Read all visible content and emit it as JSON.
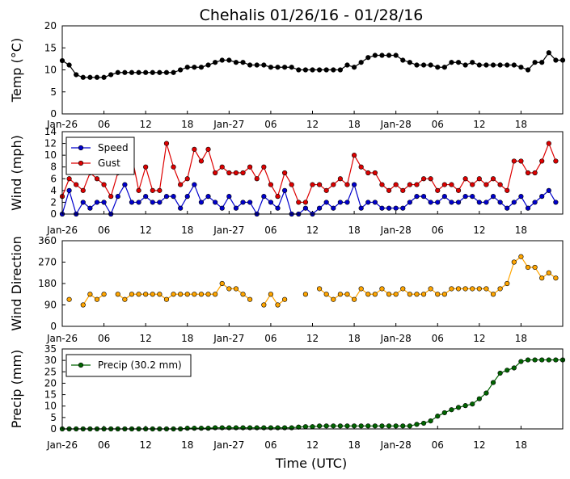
{
  "title": "Chehalis 01/26/16 - 01/28/16",
  "xlabel": "Time (UTC)",
  "x_tick_labels": [
    "Jan-26",
    "06",
    "12",
    "18",
    "Jan-27",
    "06",
    "12",
    "18",
    "Jan-28",
    "06",
    "12",
    "18"
  ],
  "colors": {
    "temp": "#000000",
    "speed": "#0000cc",
    "gust": "#dd0000",
    "direction": "#ffa500",
    "precip": "#006400"
  },
  "chart_data": [
    {
      "type": "line",
      "ylabel": "Temp ($^{\\circ}$C)",
      "ylabel_display": "Temp (°C)",
      "ylim": [
        0,
        20
      ],
      "yticks": [
        0,
        5,
        10,
        15,
        20
      ],
      "xlim": [
        0,
        72
      ],
      "x_unit": "hours since Jan-26 00:00 UTC",
      "series": [
        {
          "key": "temp",
          "values": [
            12.1,
            11.1,
            8.9,
            8.3,
            8.3,
            8.3,
            8.3,
            8.9,
            9.4,
            9.4,
            9.4,
            9.4,
            9.4,
            9.4,
            9.4,
            9.4,
            9.4,
            10.0,
            10.6,
            10.6,
            10.6,
            11.1,
            11.7,
            12.2,
            12.2,
            11.7,
            11.7,
            11.1,
            11.1,
            11.1,
            10.6,
            10.6,
            10.6,
            10.6,
            10.0,
            10.0,
            10.0,
            10.0,
            10.0,
            10.0,
            10.0,
            11.1,
            10.6,
            11.7,
            12.8,
            13.3,
            13.3,
            13.3,
            13.3,
            12.2,
            11.7,
            11.1,
            11.1,
            11.1,
            10.6,
            10.6,
            11.7,
            11.7,
            11.1,
            11.7,
            11.1,
            11.1,
            11.1,
            11.1,
            11.1,
            11.1,
            10.6,
            10.0,
            11.7,
            11.7,
            13.9,
            12.2,
            12.2
          ]
        }
      ]
    },
    {
      "type": "line",
      "ylabel": "Wind (mph)",
      "ylim": [
        0,
        14
      ],
      "yticks": [
        0,
        2,
        4,
        6,
        8,
        10,
        12,
        14
      ],
      "xlim": [
        0,
        72
      ],
      "legend_position": "top-left",
      "series": [
        {
          "key": "speed",
          "name": "Speed",
          "values": [
            0,
            4,
            0,
            2,
            1,
            2,
            2,
            0,
            3,
            5,
            2,
            2,
            3,
            2,
            2,
            3,
            3,
            1,
            3,
            5,
            2,
            3,
            2,
            1,
            3,
            1,
            2,
            2,
            0,
            3,
            2,
            1,
            4,
            0,
            0,
            1,
            0,
            1,
            2,
            1,
            2,
            2,
            5,
            1,
            2,
            2,
            1,
            1,
            1,
            1,
            2,
            3,
            3,
            2,
            2,
            3,
            2,
            2,
            3,
            3,
            2,
            2,
            3,
            2,
            1,
            2,
            3,
            1,
            2,
            3,
            4,
            2
          ]
        },
        {
          "key": "gust",
          "name": "Gust",
          "values": [
            3,
            6,
            5,
            4,
            7,
            6,
            5,
            3,
            7,
            10,
            10,
            4,
            8,
            4,
            4,
            12,
            8,
            5,
            6,
            11,
            9,
            11,
            7,
            8,
            7,
            7,
            7,
            8,
            6,
            8,
            5,
            3,
            7,
            5,
            2,
            2,
            5,
            5,
            4,
            5,
            6,
            5,
            10,
            8,
            7,
            7,
            5,
            4,
            5,
            4,
            5,
            5,
            6,
            6,
            4,
            5,
            5,
            4,
            6,
            5,
            6,
            5,
            6,
            5,
            4,
            9,
            9,
            7,
            7,
            9,
            12,
            9
          ]
        }
      ]
    },
    {
      "type": "scatter",
      "ylabel": "Wind Direction",
      "ylim": [
        0,
        360
      ],
      "yticks": [
        0,
        90,
        180,
        270,
        360
      ],
      "xlim": [
        0,
        72
      ],
      "series": [
        {
          "key": "direction",
          "values": [
            null,
            113,
            null,
            90,
            135,
            113,
            135,
            null,
            135,
            113,
            135,
            135,
            135,
            135,
            135,
            113,
            135,
            135,
            135,
            135,
            135,
            135,
            135,
            180,
            158,
            158,
            135,
            113,
            null,
            90,
            135,
            90,
            113,
            null,
            null,
            135,
            null,
            158,
            135,
            113,
            135,
            135,
            113,
            158,
            135,
            135,
            158,
            135,
            135,
            158,
            135,
            135,
            135,
            158,
            135,
            135,
            158,
            158,
            158,
            158,
            158,
            158,
            135,
            158,
            180,
            270,
            293,
            248,
            248,
            203,
            225,
            203
          ]
        }
      ]
    },
    {
      "type": "line",
      "ylabel": "Precip (mm)",
      "ylim": [
        0,
        35
      ],
      "yticks": [
        0,
        5,
        10,
        15,
        20,
        25,
        30,
        35
      ],
      "xlim": [
        0,
        72
      ],
      "legend_position": "top-left",
      "series": [
        {
          "key": "precip",
          "name": "Precip (30.2 mm)",
          "values": [
            0,
            0,
            0,
            0,
            0,
            0,
            0,
            0,
            0,
            0,
            0,
            0,
            0,
            0,
            0,
            0,
            0,
            0,
            0.3,
            0.3,
            0.3,
            0.3,
            0.5,
            0.5,
            0.5,
            0.5,
            0.5,
            0.5,
            0.5,
            0.5,
            0.5,
            0.5,
            0.5,
            0.5,
            0.8,
            1.0,
            1.0,
            1.3,
            1.3,
            1.3,
            1.3,
            1.3,
            1.3,
            1.3,
            1.3,
            1.3,
            1.3,
            1.3,
            1.3,
            1.3,
            1.3,
            2.0,
            2.5,
            3.5,
            5.6,
            7.1,
            8.4,
            9.4,
            10.2,
            10.9,
            13.2,
            15.7,
            20.3,
            24.4,
            25.7,
            26.7,
            29.5,
            30.2,
            30.2,
            30.2,
            30.2,
            30.2,
            30.2
          ]
        }
      ]
    }
  ]
}
